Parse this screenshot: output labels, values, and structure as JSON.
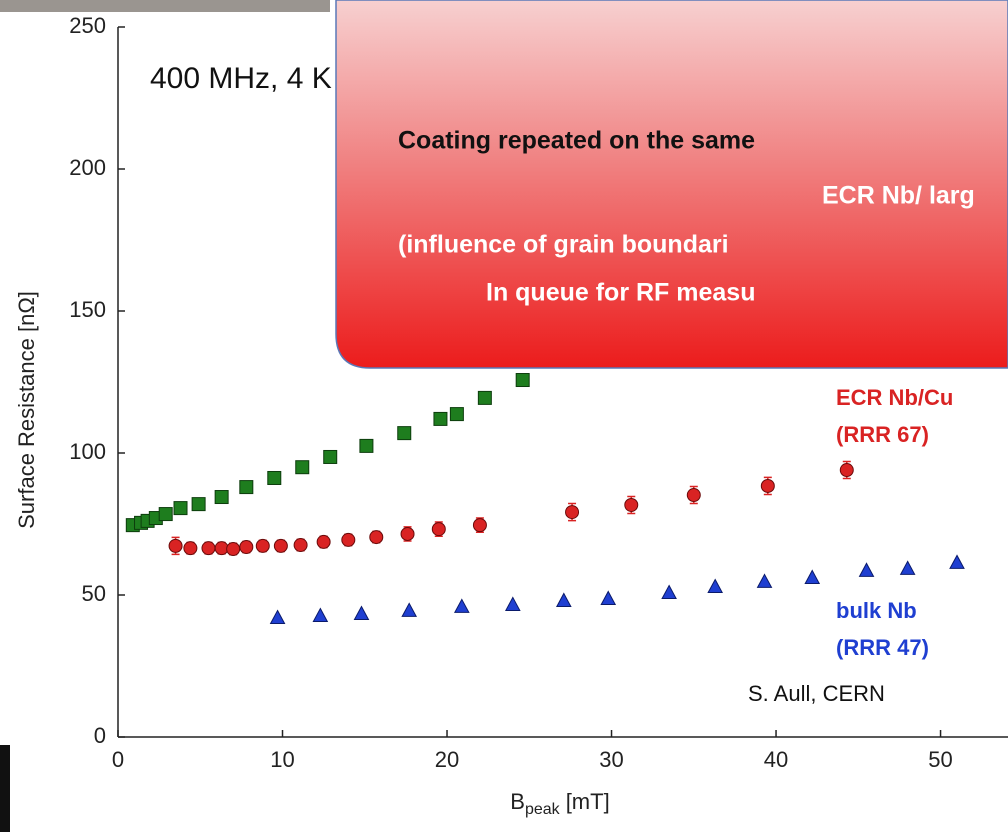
{
  "chart_data": {
    "type": "scatter",
    "ylabel": "Surface Resistance [nΩ]",
    "xlabel_main": "B",
    "xlabel_sub": "peak",
    "xlabel_unit": "[mT]",
    "xlim": [
      0,
      54.1
    ],
    "xticks": [
      0,
      10,
      20,
      30,
      40,
      50
    ],
    "ylim": [
      0,
      250
    ],
    "yticks": [
      0,
      50,
      100,
      150,
      200,
      250
    ],
    "annotations": [
      "400 MHz, 4 K",
      "S. Aull, CERN"
    ],
    "series": [
      {
        "color": "#1e7d1e",
        "marker": "square",
        "x": [
          0.9,
          1.4,
          1.8,
          2.3,
          2.9,
          3.8,
          4.9,
          6.3,
          7.8,
          9.5,
          11.2,
          12.9,
          15.1,
          17.4,
          19.6,
          20.6,
          22.3,
          24.6
        ],
        "values": [
          74.6,
          75.4,
          76.1,
          77.1,
          78.5,
          80.6,
          82,
          84.5,
          88,
          91.2,
          95,
          98.6,
          102.5,
          107,
          112,
          113.7,
          119.4,
          125.7
        ]
      },
      {
        "name": "ECR Nb/Cu",
        "note": "(RRR 67)",
        "color": "#d92323",
        "marker": "circle",
        "x": [
          3.5,
          4.4,
          5.5,
          6.3,
          7.0,
          7.8,
          8.8,
          9.9,
          11.1,
          12.5,
          14.0,
          15.7,
          17.6,
          19.5,
          22.0,
          27.6,
          31.2,
          35.0,
          39.5,
          44.3
        ],
        "values": [
          67.3,
          66.5,
          66.5,
          66.5,
          66.2,
          66.9,
          67.3,
          67.3,
          67.6,
          68.7,
          69.4,
          70.4,
          71.5,
          73.2,
          74.6,
          79.2,
          81.7,
          85.2,
          88.4,
          94.0
        ],
        "errors": [
          3,
          2,
          2,
          2,
          2,
          2,
          2,
          2,
          2,
          2,
          2,
          2,
          2.5,
          2.5,
          2.5,
          3,
          3,
          3,
          3,
          3
        ]
      },
      {
        "name": "bulk Nb",
        "note": "(RRR 47)",
        "color": "#1f3fd1",
        "marker": "triangle",
        "x": [
          9.7,
          12.3,
          14.8,
          17.7,
          20.9,
          24.0,
          27.1,
          29.8,
          33.5,
          36.3,
          39.3,
          42.2,
          45.5,
          48.0,
          51.0
        ],
        "values": [
          41.9,
          42.6,
          43.3,
          44.4,
          45.8,
          46.5,
          47.9,
          48.6,
          50.7,
          52.8,
          54.6,
          56.0,
          58.5,
          59.2,
          61.3
        ]
      }
    ]
  },
  "callout": {
    "lines": [
      "Coating repeated on the same",
      "ECR Nb/ larg",
      "(influence of grain boundari",
      "In queue for RF measu"
    ]
  }
}
